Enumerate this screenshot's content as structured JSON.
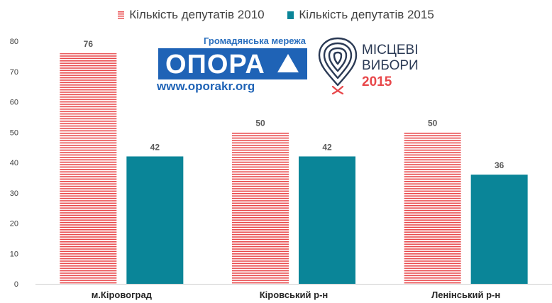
{
  "legend": [
    {
      "label": "Кількість депутатів 2010",
      "color": "#e8474a",
      "style": "striped"
    },
    {
      "label": "Кількість депутатів 2015",
      "color": "#0a8598",
      "style": "solid"
    }
  ],
  "logos": {
    "opora": {
      "tagline": "Громадянська мережа",
      "name": "ОПОРА",
      "url": "www.oporakr.org"
    },
    "elections": {
      "line1": "МІСЦЕВІ",
      "line2": "ВИБОРИ",
      "year": "2015"
    }
  },
  "chart_data": {
    "type": "bar",
    "categories": [
      "м.Кіровоград",
      "Кіровський р-н",
      "Ленінський р-н"
    ],
    "series": [
      {
        "name": "Кількість депутатів 2010",
        "values": [
          76,
          50,
          50
        ],
        "color": "#e8474a",
        "pattern": "horizontal-stripes"
      },
      {
        "name": "Кількість депутатів 2015",
        "values": [
          42,
          42,
          36
        ],
        "color": "#0a8598",
        "pattern": "solid"
      }
    ],
    "ylim": [
      0,
      80
    ],
    "yticks": [
      0,
      10,
      20,
      30,
      40,
      50,
      60,
      70,
      80
    ],
    "xlabel": "",
    "ylabel": "",
    "data_labels": true,
    "grid": false,
    "legend_position": "top-center"
  }
}
